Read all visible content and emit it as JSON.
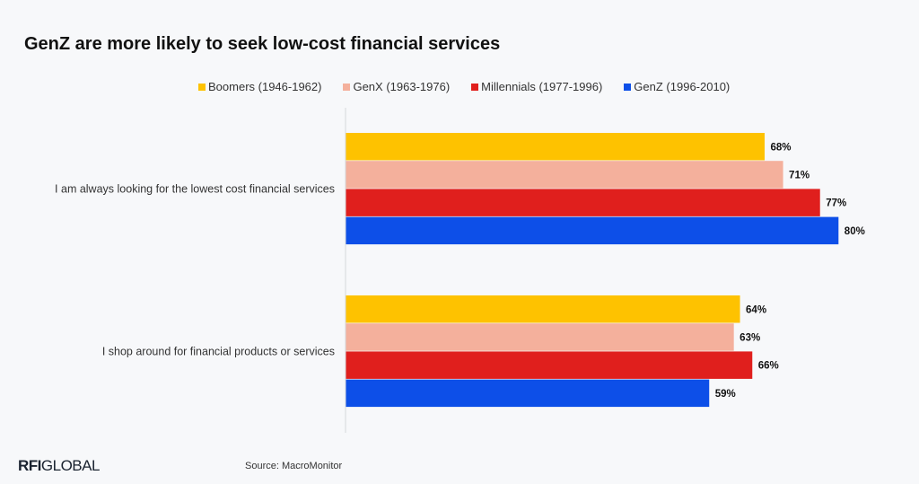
{
  "chart_data": {
    "type": "bar",
    "orientation": "horizontal",
    "title": "GenZ are more likely to seek low-cost financial services",
    "categories": [
      "I am always looking for the lowest cost financial services",
      "I shop around for financial products or services"
    ],
    "series": [
      {
        "name": "Boomers (1946-1962)",
        "color": "#fec200",
        "values": [
          68,
          64
        ]
      },
      {
        "name": "GenX (1963-1976)",
        "color": "#f4b09c",
        "values": [
          71,
          63
        ]
      },
      {
        "name": "Millennials (1977-1996)",
        "color": "#e01f1d",
        "values": [
          77,
          66
        ]
      },
      {
        "name": "GenZ (1996-2010)",
        "color": "#0d4fe8",
        "values": [
          80,
          59
        ]
      }
    ],
    "value_suffix": "%",
    "xlim": [
      0,
      100
    ],
    "grid": false,
    "legend_position": "top"
  },
  "footer": {
    "logo_bold": "RFI",
    "logo_text": "GLOBAL",
    "source": "Source: MacroMonitor"
  }
}
